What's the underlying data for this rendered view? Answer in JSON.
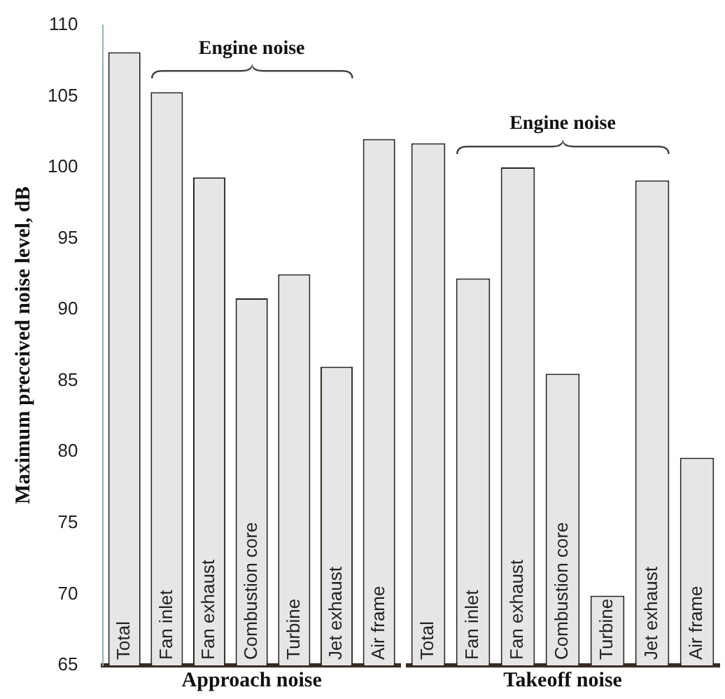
{
  "chart_data": [
    {
      "type": "bar",
      "xlabel": "Approach noise",
      "ylabel": "Maximum preceived noise level, dB",
      "annotations": [
        "Engine noise"
      ],
      "categories": [
        "Total",
        "Fan inlet",
        "Fan exhaust",
        "Combustion core",
        "Turbine",
        "Jet exhaust",
        "Air frame"
      ],
      "values": [
        108.1,
        105.3,
        99.3,
        90.8,
        92.5,
        86,
        102
      ],
      "color": "#e6e6e6",
      "ylim": [
        65,
        110
      ],
      "yticks": [
        65,
        70,
        75,
        80,
        85,
        90,
        95,
        100,
        105,
        110
      ],
      "grid": false,
      "legend": false
    },
    {
      "type": "bar",
      "xlabel": "Takeoff noise",
      "annotations": [
        "Engine noise"
      ],
      "categories": [
        "Total",
        "Fan inlet",
        "Fan exhaust",
        "Combustion core",
        "Turbine",
        "Jet exhaust",
        "Air frame"
      ],
      "values": [
        101.7,
        92.2,
        100,
        85.5,
        69.9,
        99.1,
        79.6
      ],
      "color": "#e6e6e6",
      "ylim": [
        65,
        110
      ],
      "yticks": [
        65,
        70,
        75,
        80,
        85,
        90,
        95,
        100,
        105,
        110
      ],
      "grid": false,
      "legend": false,
      "tick_labels": "x"
    }
  ]
}
